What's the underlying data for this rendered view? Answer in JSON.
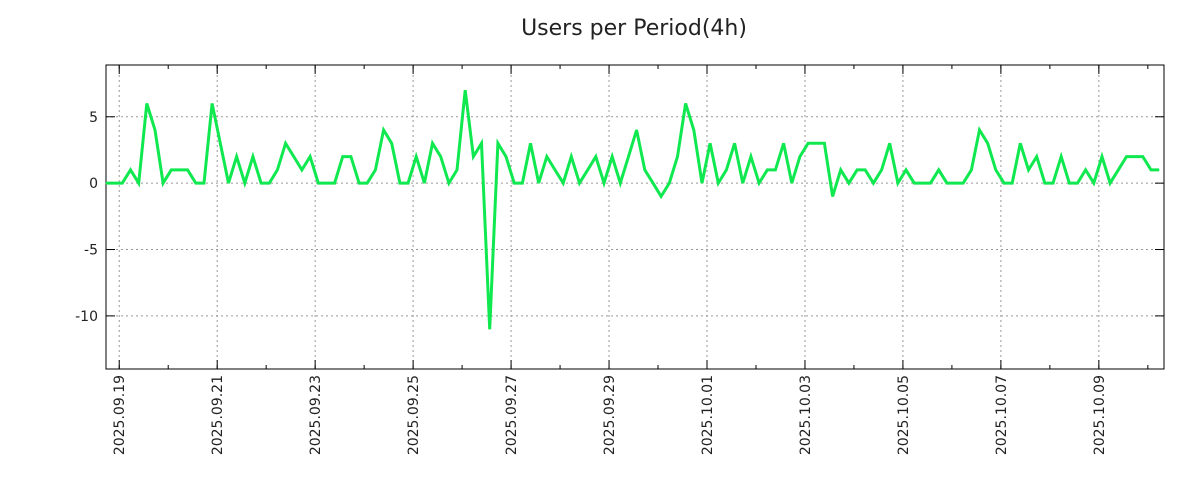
{
  "chart_data": {
    "type": "line",
    "title": "Users per Period(4h)",
    "xlabel": "",
    "ylabel": "",
    "x_origin_date": "2025.09.19",
    "x_unit": "days since 2025.09.19",
    "xlim": [
      -0.27,
      21.33
    ],
    "ylim": [
      -14,
      8.9
    ],
    "grid": true,
    "legend": "none",
    "x_tick_labels": [
      {
        "day": 0,
        "label": "2025.09.19"
      },
      {
        "day": 2,
        "label": "2025.09.21"
      },
      {
        "day": 4,
        "label": "2025.09.23"
      },
      {
        "day": 6,
        "label": "2025.09.25"
      },
      {
        "day": 8,
        "label": "2025.09.27"
      },
      {
        "day": 10,
        "label": "2025.09.29"
      },
      {
        "day": 12,
        "label": "2025.10.01"
      },
      {
        "day": 14,
        "label": "2025.10.03"
      },
      {
        "day": 16,
        "label": "2025.10.05"
      },
      {
        "day": 18,
        "label": "2025.10.07"
      },
      {
        "day": 20,
        "label": "2025.10.09"
      }
    ],
    "y_ticks": [
      {
        "value": 5,
        "label": "5"
      },
      {
        "value": 0,
        "label": "0"
      },
      {
        "value": -5,
        "label": "-5"
      },
      {
        "value": -10,
        "label": "-10"
      }
    ],
    "series": [
      {
        "name": "Users",
        "color": "#10e850",
        "x_start_day": -0.27,
        "step_days": 0.16667,
        "values": [
          0,
          0,
          0,
          1,
          0,
          6,
          4,
          0,
          1,
          1,
          1,
          0,
          0,
          6,
          3,
          0,
          2,
          0,
          2,
          0,
          0,
          1,
          3,
          2,
          1,
          2,
          0,
          0,
          0,
          2,
          2,
          0,
          0,
          1,
          4,
          3,
          0,
          0,
          2,
          0,
          3,
          2,
          0,
          1,
          7,
          2,
          3,
          -11,
          3,
          2,
          0,
          0,
          3,
          0,
          2,
          1,
          0,
          2,
          0,
          1,
          2,
          0,
          2,
          0,
          2,
          4,
          1,
          0,
          -1,
          0,
          2,
          6,
          4,
          0,
          3,
          0,
          1,
          3,
          0,
          2,
          0,
          1,
          1,
          3,
          0,
          2,
          3,
          3,
          3,
          -1,
          1,
          0,
          1,
          1,
          0,
          1,
          3,
          0,
          1,
          0,
          0,
          0,
          1,
          0,
          0,
          0,
          1,
          4,
          3,
          1,
          0,
          0,
          3,
          1,
          2,
          0,
          0,
          2,
          0,
          0,
          1,
          0,
          2,
          0,
          1,
          2,
          2,
          2,
          1,
          1
        ]
      }
    ]
  }
}
